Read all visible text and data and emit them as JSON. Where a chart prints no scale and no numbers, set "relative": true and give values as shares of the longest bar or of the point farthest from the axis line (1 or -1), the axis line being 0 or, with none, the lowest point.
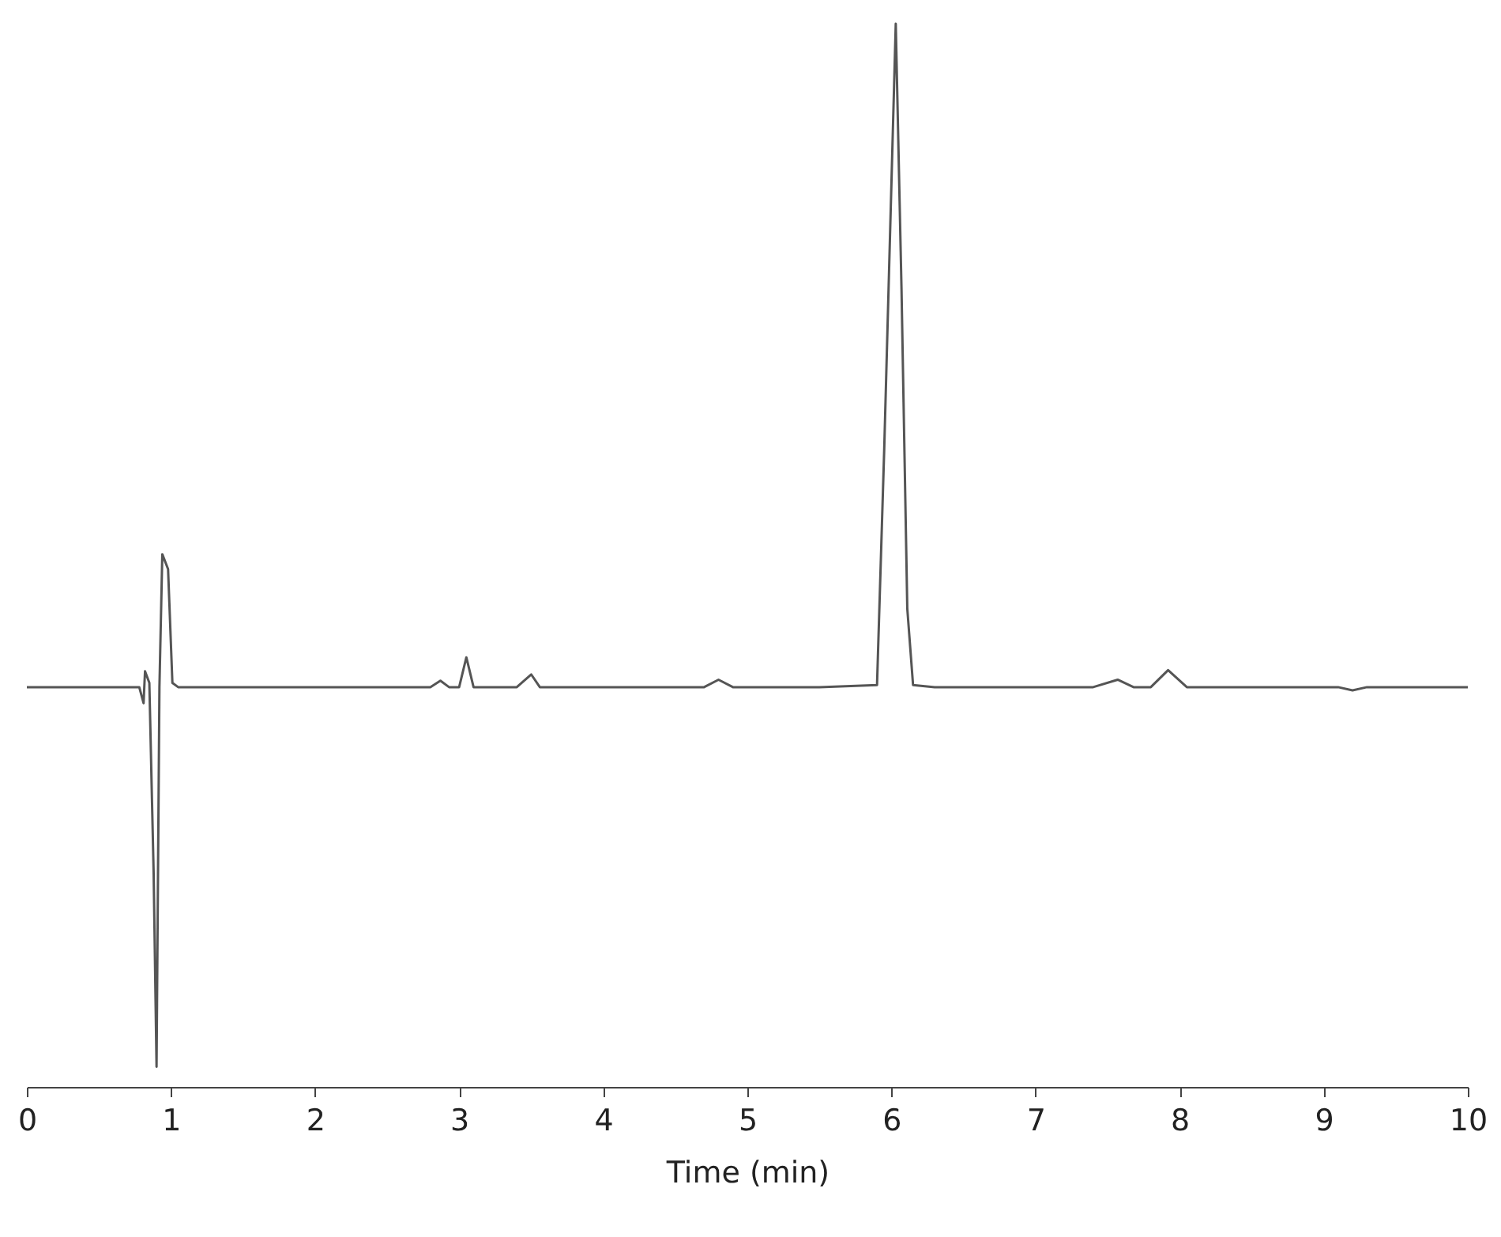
{
  "chart_data": {
    "type": "line",
    "relative": true,
    "xlabel": "Time (min)",
    "xlim": [
      0,
      10
    ],
    "xticks": [
      0,
      1,
      2,
      3,
      4,
      5,
      6,
      7,
      8,
      9,
      10
    ],
    "grid": false,
    "tick_labels": "x",
    "x": [
      0,
      0.3,
      0.5,
      0.7,
      0.78,
      0.81,
      0.82,
      0.85,
      0.88,
      0.9,
      0.92,
      0.94,
      0.98,
      1.01,
      1.05,
      1.4,
      2.0,
      2.4,
      2.8,
      2.87,
      2.93,
      3.0,
      3.05,
      3.1,
      3.4,
      3.5,
      3.56,
      4.2,
      4.7,
      4.8,
      4.9,
      5.5,
      5.9,
      5.95,
      5.98,
      6.03,
      6.07,
      6.11,
      6.15,
      6.3,
      7.4,
      7.57,
      7.68,
      7.8,
      7.92,
      8.05,
      9.1,
      9.2,
      9.3,
      10
    ],
    "series": [
      {
        "color": "#555555",
        "values": [
          0.376,
          0.376,
          0.376,
          0.376,
          0.376,
          0.361,
          0.391,
          0.38,
          0.2,
          0.019,
          0.376,
          0.501,
          0.487,
          0.38,
          0.376,
          0.376,
          0.376,
          0.376,
          0.376,
          0.382,
          0.376,
          0.376,
          0.404,
          0.376,
          0.376,
          0.388,
          0.376,
          0.376,
          0.376,
          0.383,
          0.376,
          0.376,
          0.378,
          0.6,
          0.75,
          1.0,
          0.75,
          0.45,
          0.378,
          0.376,
          0.376,
          0.383,
          0.376,
          0.376,
          0.392,
          0.376,
          0.376,
          0.373,
          0.376,
          0.376
        ]
      }
    ]
  }
}
